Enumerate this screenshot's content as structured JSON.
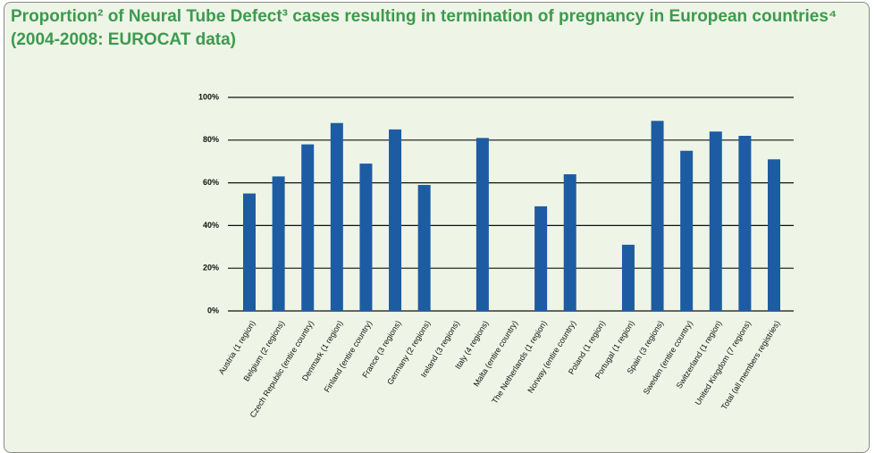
{
  "chart_data": {
    "type": "bar",
    "title": "Proportion² of Neural Tube Defect³ cases resulting in termination of pregnancy in European countries⁴ (2004-2008: EUROCAT data)",
    "categories": [
      "Austria (1 region)",
      "Belgium (2 regions)",
      "Czech Republic (entire country)",
      "Denmark (1 region)",
      "Finland (entire country)",
      "France (3 regions)",
      "Germany (2 regions)",
      "Ireland (3 regions)",
      "Italy (4 regions)",
      "Malta (entire country)",
      "The Netherlands (1 region)",
      "Norway (entire country)",
      "Poland (1 region)",
      "Portugal (1 region)",
      "Spain (3 regions)",
      "Sweden (entire country)",
      "Switzerland (1 region)",
      "United Kingdom (7 regions)",
      "Total (all members registries)"
    ],
    "values": [
      55,
      63,
      78,
      88,
      69,
      85,
      59,
      null,
      81,
      null,
      49,
      64,
      null,
      31,
      89,
      75,
      84,
      82,
      71
    ],
    "color": "#1d5ca3",
    "ylim": [
      0,
      100
    ],
    "yticks": [
      {
        "value": 0,
        "label": "0%"
      },
      {
        "value": 20,
        "label": "20%"
      },
      {
        "value": 40,
        "label": "40%"
      },
      {
        "value": 60,
        "label": "60%"
      },
      {
        "value": 80,
        "label": "80%"
      },
      {
        "value": 100,
        "label": "100%"
      }
    ],
    "grid": true
  }
}
